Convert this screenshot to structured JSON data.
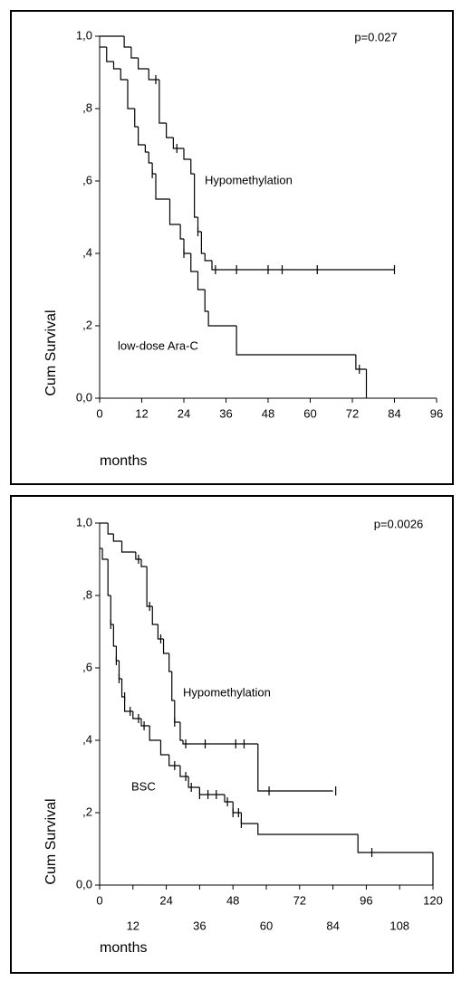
{
  "chart_data": [
    {
      "type": "kaplan-meier",
      "annotation": "p=0.027",
      "xlabel": "months",
      "ylabel": "Cum Survival",
      "xlim": [
        0,
        96
      ],
      "ylim": [
        0,
        1
      ],
      "xticks": [
        0,
        12,
        24,
        36,
        48,
        60,
        72,
        84,
        96
      ],
      "xtick_rows": 1,
      "yticks": [
        {
          "value": 0,
          "label": "0,0"
        },
        {
          "value": 0.2,
          "label": ",2"
        },
        {
          "value": 0.4,
          "label": ",4"
        },
        {
          "value": 0.6,
          "label": ",6"
        },
        {
          "value": 0.8,
          "label": ",8"
        },
        {
          "value": 1,
          "label": "1,0"
        }
      ],
      "series": [
        {
          "name": "Hypomethylation",
          "color": "#000000",
          "x": [
            0,
            7,
            9,
            11,
            14,
            17,
            19,
            21,
            24,
            26,
            27,
            28,
            29,
            30,
            32,
            84
          ],
          "values": [
            1,
            0.97,
            0.94,
            0.91,
            0.88,
            0.76,
            0.72,
            0.69,
            0.66,
            0.62,
            0.5,
            0.46,
            0.4,
            0.38,
            0.355,
            0.355
          ],
          "censored_x": [
            16,
            22,
            28,
            33,
            39,
            48,
            52,
            62,
            84
          ],
          "censored_values": [
            0.88,
            0.69,
            0.46,
            0.355,
            0.355,
            0.355,
            0.355,
            0.355,
            0.355
          ]
        },
        {
          "name": "low-dose Ara-C",
          "color": "#000000",
          "x": [
            0,
            2,
            4,
            6,
            8,
            10,
            11,
            13,
            14,
            15,
            16,
            20,
            23,
            24,
            26,
            28,
            30,
            31,
            39,
            73,
            76
          ],
          "values": [
            0.97,
            0.93,
            0.91,
            0.88,
            0.8,
            0.75,
            0.7,
            0.68,
            0.65,
            0.62,
            0.55,
            0.48,
            0.44,
            0.4,
            0.35,
            0.3,
            0.24,
            0.2,
            0.12,
            0.08,
            0
          ],
          "censored_x": [
            15,
            24,
            74
          ],
          "censored_values": [
            0.62,
            0.4,
            0.08
          ]
        }
      ]
    },
    {
      "type": "kaplan-meier",
      "annotation": "p=0.0026",
      "xlabel": "months",
      "ylabel": "Cum Survival",
      "xlim": [
        0,
        120
      ],
      "ylim": [
        0,
        1
      ],
      "xticks": [
        0,
        12,
        24,
        36,
        48,
        60,
        72,
        84,
        96,
        108,
        120
      ],
      "xtick_rows": 2,
      "yticks": [
        {
          "value": 0,
          "label": "0,0"
        },
        {
          "value": 0.2,
          "label": ",2"
        },
        {
          "value": 0.4,
          "label": ",4"
        },
        {
          "value": 0.6,
          "label": ",6"
        },
        {
          "value": 0.8,
          "label": ",8"
        },
        {
          "value": 1,
          "label": "1,0"
        }
      ],
      "series": [
        {
          "name": "Hypomethylation",
          "color": "#000000",
          "x": [
            0,
            3,
            5,
            8,
            13,
            15,
            17,
            19,
            21,
            23,
            25,
            26,
            27,
            29,
            30,
            57,
            84
          ],
          "values": [
            1,
            0.97,
            0.95,
            0.92,
            0.9,
            0.88,
            0.77,
            0.72,
            0.68,
            0.64,
            0.59,
            0.51,
            0.45,
            0.4,
            0.39,
            0.26,
            0.26
          ],
          "censored_x": [
            14,
            18,
            22,
            27,
            31,
            38,
            49,
            52,
            61,
            85
          ],
          "censored_values": [
            0.9,
            0.77,
            0.68,
            0.45,
            0.39,
            0.39,
            0.39,
            0.39,
            0.26,
            0.26
          ]
        },
        {
          "name": "BSC",
          "color": "#000000",
          "x": [
            0,
            1,
            3,
            4,
            5,
            6,
            7,
            8,
            9,
            12,
            15,
            18,
            22,
            25,
            29,
            32,
            36,
            45,
            48,
            51,
            57,
            93,
            120
          ],
          "values": [
            0.93,
            0.9,
            0.8,
            0.72,
            0.66,
            0.62,
            0.57,
            0.52,
            0.48,
            0.46,
            0.44,
            0.4,
            0.36,
            0.33,
            0.3,
            0.27,
            0.25,
            0.23,
            0.2,
            0.17,
            0.14,
            0.09,
            0
          ],
          "censored_x": [
            4,
            6,
            7,
            9,
            11,
            14,
            16,
            27,
            31,
            33,
            36,
            39,
            42,
            46,
            48,
            50,
            51,
            98
          ],
          "censored_values": [
            0.72,
            0.62,
            0.57,
            0.52,
            0.48,
            0.46,
            0.44,
            0.33,
            0.3,
            0.27,
            0.25,
            0.25,
            0.25,
            0.23,
            0.2,
            0.2,
            0.17,
            0.09
          ]
        }
      ]
    }
  ]
}
